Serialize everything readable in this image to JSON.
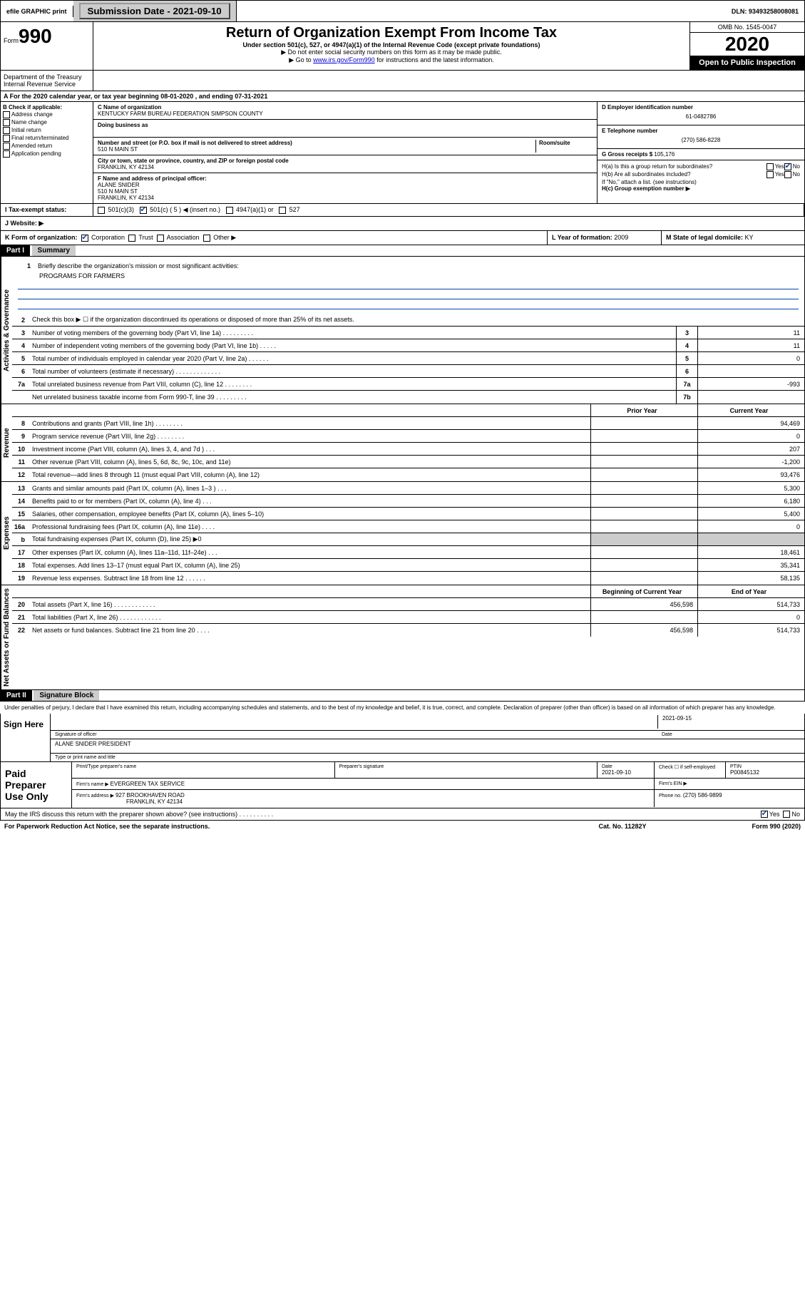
{
  "topbar": {
    "efile": "efile GRAPHIC print",
    "submission_label": "Submission Date - 2021-09-10",
    "dln": "DLN: 93493258008081"
  },
  "header": {
    "form_label": "Form",
    "form_num": "990",
    "title": "Return of Organization Exempt From Income Tax",
    "subtitle": "Under section 501(c), 527, or 4947(a)(1) of the Internal Revenue Code (except private foundations)",
    "note1": "▶ Do not enter social security numbers on this form as it may be made public.",
    "note2_pre": "▶ Go to ",
    "note2_link": "www.irs.gov/Form990",
    "note2_post": " for instructions and the latest information.",
    "omb": "OMB No. 1545-0047",
    "year": "2020",
    "open_public": "Open to Public Inspection",
    "dept": "Department of the Treasury Internal Revenue Service"
  },
  "section_a": "A For the 2020 calendar year, or tax year beginning 08-01-2020    , and ending 07-31-2021",
  "col_b": {
    "header": "B Check if applicable:",
    "items": [
      "Address change",
      "Name change",
      "Initial return",
      "Final return/terminated",
      "Amended return",
      "Application pending"
    ]
  },
  "org": {
    "name_label": "C Name of organization",
    "name": "KENTUCKY FARM BUREAU FEDERATION SIMPSON COUNTY",
    "dba_label": "Doing business as",
    "addr_label": "Number and street (or P.O. box if mail is not delivered to street address)",
    "room_label": "Room/suite",
    "addr": "510 N MAIN ST",
    "city_label": "City or town, state or province, country, and ZIP or foreign postal code",
    "city": "FRANKLIN, KY  42134",
    "officer_label": "F  Name and address of principal officer:",
    "officer_name": "ALANE SNIDER",
    "officer_addr1": "510 N MAIN ST",
    "officer_addr2": "FRANKLIN, KY  42134"
  },
  "right": {
    "ein_label": "D Employer identification number",
    "ein": "61-0482786",
    "phone_label": "E Telephone number",
    "phone": "(270) 586-8228",
    "gross_label": "G Gross receipts $ ",
    "gross": "105,176",
    "ha_label": "H(a)  Is this a group return for subordinates?",
    "hb_label": "H(b)  Are all subordinates included?",
    "hb_note": "If \"No,\" attach a list. (see instructions)",
    "hc_label": "H(c)  Group exemption number ▶",
    "yes": "Yes",
    "no": "No"
  },
  "tax_status": {
    "label": "I  Tax-exempt status:",
    "opt1": "501(c)(3)",
    "opt2": "501(c) ( 5 ) ◀ (insert no.)",
    "opt3": "4947(a)(1) or",
    "opt4": "527"
  },
  "website_label": "J  Website: ▶",
  "korg": {
    "label": "K Form of organization:",
    "opts": [
      "Corporation",
      "Trust",
      "Association",
      "Other ▶"
    ],
    "year_label": "L Year of formation: ",
    "year": "2009",
    "state_label": "M State of legal domicile: ",
    "state": "KY"
  },
  "part1": {
    "header": "Part I",
    "title": "Summary"
  },
  "summary": {
    "governance_label": "Activities & Governance",
    "revenue_label": "Revenue",
    "expenses_label": "Expenses",
    "netassets_label": "Net Assets or Fund Balances",
    "line1_label": "Briefly describe the organization's mission or most significant activities:",
    "line1_val": "PROGRAMS FOR FARMERS",
    "line2": "Check this box ▶ ☐  if the organization discontinued its operations or disposed of more than 25% of its net assets.",
    "lines_gov": [
      {
        "n": "3",
        "t": "Number of voting members of the governing body (Part VI, line 1a)   .    .    .    .    .    .    .    .    .",
        "box": "3",
        "v": "11"
      },
      {
        "n": "4",
        "t": "Number of independent voting members of the governing body (Part VI, line 1b)   .    .    .    .    .",
        "box": "4",
        "v": "11"
      },
      {
        "n": "5",
        "t": "Total number of individuals employed in calendar year 2020 (Part V, line 2a)   .    .    .    .    .    .",
        "box": "5",
        "v": "0"
      },
      {
        "n": "6",
        "t": "Total number of volunteers (estimate if necessary)   .    .    .    .    .    .    .    .    .    .    .    .    .",
        "box": "6",
        "v": ""
      },
      {
        "n": "7a",
        "t": "Total unrelated business revenue from Part VIII, column (C), line 12   .    .    .    .    .    .    .    .",
        "box": "7a",
        "v": "-993"
      },
      {
        "n": "",
        "t": "Net unrelated business taxable income from Form 990-T, line 39   .    .    .    .    .    .    .    .    .",
        "box": "7b",
        "v": ""
      }
    ],
    "prior_year": "Prior Year",
    "current_year": "Current Year",
    "lines_rev": [
      {
        "n": "8",
        "t": "Contributions and grants (Part VIII, line 1h)   .    .    .    .    .    .    .    .",
        "p": "",
        "c": "94,469"
      },
      {
        "n": "9",
        "t": "Program service revenue (Part VIII, line 2g)   .    .    .    .    .    .    .    .",
        "p": "",
        "c": "0"
      },
      {
        "n": "10",
        "t": "Investment income (Part VIII, column (A), lines 3, 4, and 7d )   .    .    .",
        "p": "",
        "c": "207"
      },
      {
        "n": "11",
        "t": "Other revenue (Part VIII, column (A), lines 5, 6d, 8c, 9c, 10c, and 11e)",
        "p": "",
        "c": "-1,200"
      },
      {
        "n": "12",
        "t": "Total revenue—add lines 8 through 11 (must equal Part VIII, column (A), line 12)",
        "p": "",
        "c": "93,476"
      }
    ],
    "lines_exp": [
      {
        "n": "13",
        "t": "Grants and similar amounts paid (Part IX, column (A), lines 1–3 )   .    .    .",
        "p": "",
        "c": "5,300"
      },
      {
        "n": "14",
        "t": "Benefits paid to or for members (Part IX, column (A), line 4)   .    .    .",
        "p": "",
        "c": "6,180"
      },
      {
        "n": "15",
        "t": "Salaries, other compensation, employee benefits (Part IX, column (A), lines 5–10)",
        "p": "",
        "c": "5,400"
      },
      {
        "n": "16a",
        "t": "Professional fundraising fees (Part IX, column (A), line 11e)   .    .    .    .",
        "p": "",
        "c": "0"
      },
      {
        "n": "b",
        "t": "Total fundraising expenses (Part IX, column (D), line 25) ▶0",
        "p": "shaded",
        "c": "shaded"
      },
      {
        "n": "17",
        "t": "Other expenses (Part IX, column (A), lines 11a–11d, 11f–24e)   .    .    .",
        "p": "",
        "c": "18,461"
      },
      {
        "n": "18",
        "t": "Total expenses. Add lines 13–17 (must equal Part IX, column (A), line 25)",
        "p": "",
        "c": "35,341"
      },
      {
        "n": "19",
        "t": "Revenue less expenses. Subtract line 18 from line 12   .    .    .    .    .    .",
        "p": "",
        "c": "58,135"
      }
    ],
    "begin_year": "Beginning of Current Year",
    "end_year": "End of Year",
    "lines_net": [
      {
        "n": "20",
        "t": "Total assets (Part X, line 16)   .    .    .    .    .    .    .    .    .    .    .    .",
        "p": "456,598",
        "c": "514,733"
      },
      {
        "n": "21",
        "t": "Total liabilities (Part X, line 26)   .    .    .    .    .    .    .    .    .    .    .    .",
        "p": "",
        "c": "0"
      },
      {
        "n": "22",
        "t": "Net assets or fund balances. Subtract line 21 from line 20   .    .    .    .",
        "p": "456,598",
        "c": "514,733"
      }
    ]
  },
  "part2": {
    "header": "Part II",
    "title": "Signature Block",
    "decl": "Under penalties of perjury, I declare that I have examined this return, including accompanying schedules and statements, and to the best of my knowledge and belief, it is true, correct, and complete. Declaration of preparer (other than officer) is based on all information of which preparer has any knowledge."
  },
  "sign": {
    "label": "Sign Here",
    "sig_label": "Signature of officer",
    "date_label": "Date",
    "date": "2021-09-15",
    "name": "ALANE SNIDER  PRESIDENT",
    "name_label": "Type or print name and title"
  },
  "paid": {
    "label": "Paid Preparer Use Only",
    "col1": "Print/Type preparer's name",
    "col2": "Preparer's signature",
    "col3_label": "Date",
    "col3": "2021-09-10",
    "col4_label": "Check ☐ if self-employed",
    "col5_label": "PTIN",
    "col5": "P00845132",
    "firm_name_label": "Firm's name      ▶ ",
    "firm_name": "EVERGREEN TAX SERVICE",
    "firm_ein_label": "Firm's EIN ▶",
    "firm_addr_label": "Firm's address ▶ ",
    "firm_addr1": "927 BROOKHAVEN ROAD",
    "firm_addr2": "FRANKLIN, KY  42134",
    "firm_phone_label": "Phone no. ",
    "firm_phone": "(270) 586-9899"
  },
  "footer": {
    "discuss": "May the IRS discuss this return with the preparer shown above? (see instructions)   .    .    .    .    .    .    .    .    .    .",
    "yes": "Yes",
    "no": "No",
    "paperwork": "For Paperwork Reduction Act Notice, see the separate instructions.",
    "catno": "Cat. No. 11282Y",
    "formno": "Form 990 (2020)"
  }
}
